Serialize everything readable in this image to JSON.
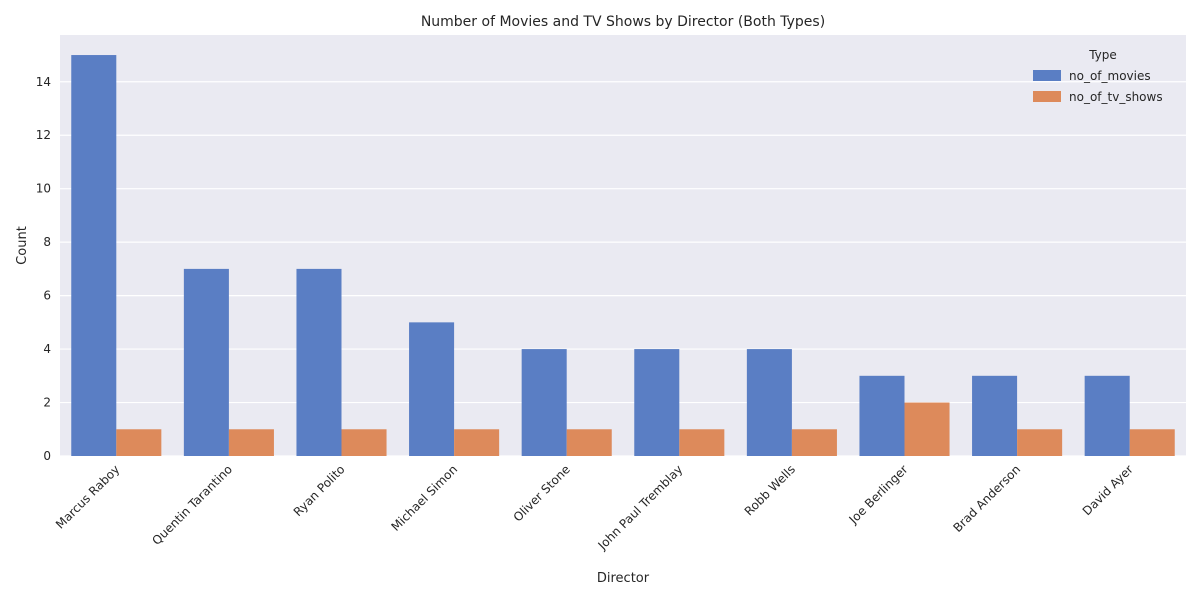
{
  "chart_data": {
    "type": "bar",
    "title": "Number of Movies and TV Shows by Director (Both Types)",
    "xlabel": "Director",
    "ylabel": "Count",
    "ylim": [
      0,
      15.75
    ],
    "yticks": [
      0,
      2,
      4,
      6,
      8,
      10,
      12,
      14
    ],
    "grid": true,
    "legend": {
      "title": "Type",
      "placement": "top-right"
    },
    "categories": [
      "Marcus Raboy",
      "Quentin Tarantino",
      "Ryan Polito",
      "Michael Simon",
      "Oliver Stone",
      "John Paul Tremblay",
      "Robb Wells",
      "Joe Berlinger",
      "Brad Anderson",
      "David Ayer"
    ],
    "series": [
      {
        "name": "no_of_movies",
        "color": "#5a7ec4",
        "values": [
          15,
          7,
          7,
          5,
          4,
          4,
          4,
          3,
          3,
          3
        ]
      },
      {
        "name": "no_of_tv_shows",
        "color": "#dd8a5b",
        "values": [
          1,
          1,
          1,
          1,
          1,
          1,
          1,
          2,
          1,
          1
        ]
      }
    ],
    "background_color": "#eaeaf2",
    "grid_color": "#ffffff"
  }
}
